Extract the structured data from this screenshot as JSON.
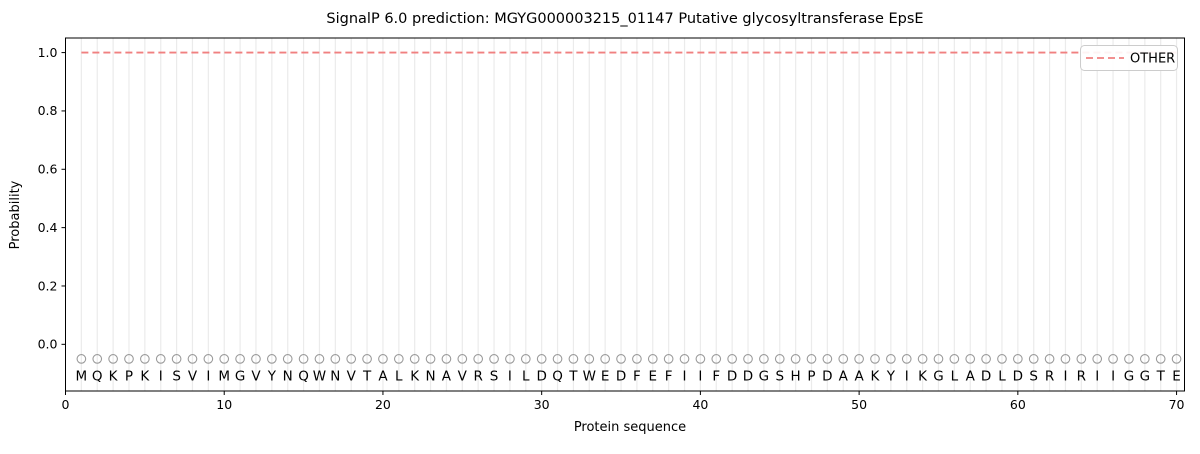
{
  "chart_data": {
    "type": "line",
    "title": "SignalP 6.0 prediction: MGYG000003215_01147 Putative glycosyltransferase EpsE",
    "xlabel": "Protein sequence",
    "ylabel": "Probability",
    "xlim": [
      0,
      70.5
    ],
    "ylim": [
      -0.16,
      1.05
    ],
    "xticks": [
      0,
      10,
      20,
      30,
      40,
      50,
      60,
      70
    ],
    "xticklabels": [
      "0",
      "10",
      "20",
      "30",
      "40",
      "50",
      "60",
      "70"
    ],
    "yticks": [
      0.0,
      0.2,
      0.4,
      0.6,
      0.8,
      1.0
    ],
    "yticklabels": [
      "0.0",
      "0.2",
      "0.4",
      "0.6",
      "0.8",
      "1.0"
    ],
    "grid": "vertical-per-residue",
    "sequence": "MQKPKISVIMGVYNQWNVTALKNAVRSILDQTWEDFEFIIFDDGSHPDAAKYIKGLADLDSRIRIIGGTE",
    "series": [
      {
        "name": "OTHER",
        "color": "#f08080",
        "dashed": true,
        "x": [
          1,
          2,
          3,
          4,
          5,
          6,
          7,
          8,
          9,
          10,
          11,
          12,
          13,
          14,
          15,
          16,
          17,
          18,
          19,
          20,
          21,
          22,
          23,
          24,
          25,
          26,
          27,
          28,
          29,
          30,
          31,
          32,
          33,
          34,
          35,
          36,
          37,
          38,
          39,
          40,
          41,
          42,
          43,
          44,
          45,
          46,
          47,
          48,
          49,
          50,
          51,
          52,
          53,
          54,
          55,
          56,
          57,
          58,
          59,
          60,
          61,
          62,
          63,
          64,
          65,
          66,
          67,
          68,
          69,
          70
        ],
        "values": [
          1.0,
          1.0,
          1.0,
          1.0,
          1.0,
          1.0,
          1.0,
          1.0,
          1.0,
          1.0,
          1.0,
          1.0,
          1.0,
          1.0,
          1.0,
          1.0,
          1.0,
          1.0,
          1.0,
          1.0,
          1.0,
          1.0,
          1.0,
          1.0,
          1.0,
          1.0,
          1.0,
          1.0,
          1.0,
          1.0,
          1.0,
          1.0,
          1.0,
          1.0,
          1.0,
          1.0,
          1.0,
          1.0,
          1.0,
          1.0,
          1.0,
          1.0,
          1.0,
          1.0,
          1.0,
          1.0,
          1.0,
          1.0,
          1.0,
          1.0,
          1.0,
          1.0,
          1.0,
          1.0,
          1.0,
          1.0,
          1.0,
          1.0,
          1.0,
          1.0,
          1.0,
          1.0,
          1.0,
          1.0,
          1.0,
          1.0,
          1.0,
          1.0,
          1.0,
          1.0
        ]
      }
    ],
    "marker_row": {
      "y": -0.05,
      "shape": "open-circle"
    },
    "legend": {
      "position": "upper-right",
      "entries": [
        {
          "label": "OTHER",
          "color": "#f08080",
          "dashed": true
        }
      ]
    },
    "colors": {
      "grid": "#ebebeb",
      "marker": "#9a9a9a",
      "letter": "#1a1a1a",
      "axis": "#000000",
      "legend_border": "#cccccc",
      "background": "#ffffff"
    }
  }
}
